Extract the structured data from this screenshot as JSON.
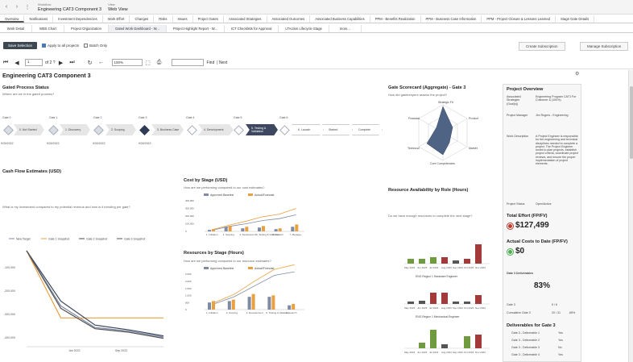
{
  "topbar": {
    "workflow_label": "Workflow",
    "workflow": "Engineering CAT3 Component 3",
    "view_label": "View",
    "view": "Web View"
  },
  "tabs": [
    "Overview",
    "Notifications",
    "Investment Dependencies",
    "Work Effort",
    "Changes",
    "Risks",
    "Issues",
    "Project Gates",
    "Associated Strategies",
    "Associated Outcomes",
    "Associated Business Capabilities",
    "PPM - Benefits Realization",
    "PPM - Business Case Information",
    "PPM - Project Closure & Lessons Learned",
    "Stage Gate Details"
  ],
  "subtabs": [
    "Work Detail",
    "WBS Chart",
    "Project Organization",
    "Gated Work Dashboard - W...",
    "Project Highlight Report - W...",
    "ICT Checklists for Approval",
    "LTAction Lifecycle Stage",
    "more..."
  ],
  "actions": {
    "save_selection": "Save Selection",
    "apply_all": "Apply to all projects",
    "batch_only": "Batch Only",
    "create_subscription": "Create Subscription",
    "manage_subscription": "Manage Subscription"
  },
  "pager": {
    "page": "1",
    "of": "of 2 ?",
    "zoom": "100%",
    "find": "Find",
    "next": "| Next"
  },
  "report": {
    "title": "Engineering CAT3 Component 3",
    "gated": {
      "title": "Gated Process Status",
      "question": "Where are we in the gated process?",
      "gates": [
        {
          "label": "Gate 0",
          "date": "9/30/2022"
        },
        {
          "label": "Gate 1",
          "date": "9/30/2022"
        },
        {
          "label": "Gate 2",
          "date": "9/30/2022"
        },
        {
          "label": "Gate 3",
          "date": "9/30/2022"
        },
        {
          "label": "Gate 4",
          "date": ""
        },
        {
          "label": "Gate 5",
          "date": ""
        },
        {
          "label": "Gate 6",
          "date": ""
        }
      ],
      "stages": [
        "0. Not Started",
        "1. Discovery",
        "2. Scoping",
        "3. Business Case",
        "4. Development",
        "5. Testing & Validation",
        "6. Launch",
        "Started",
        "Complete"
      ]
    },
    "scorecard": {
      "title": "Gate Scorecard (Aggregate) - Gate 3",
      "question": "How did gatekeepers assess the project?",
      "axes": [
        "Strategic Fit",
        "Product",
        "Market",
        "Core Competencies",
        "Technical",
        "Financial"
      ]
    },
    "cashflow": {
      "title": "Cash Flow Estimates (USD)",
      "question": "What is my investment compared to my potential revenue and how is it trending per gate?",
      "legend": [
        "New Target",
        "Gate 1 Snapshot",
        "Gate 2 Snapshot",
        "Gate 3 Snapshot"
      ],
      "yticks": [
        "-100,000",
        "-200,000",
        "-300,000",
        "-400,000"
      ],
      "xticks": [
        "Jan 2023",
        "Sep 2023"
      ]
    },
    "cost": {
      "title": "Cost by Stage (USD)",
      "question": "How are we performing compared to our cost estimates?",
      "legend": [
        "Approved Baseline",
        "Actual/Forecast"
      ],
      "yticks": [
        "400,000",
        "300,000",
        "200,000",
        "100,000",
        "0"
      ],
      "categories": [
        "1. Initiation",
        "2. Scoping",
        "4. Development",
        "5. Testing & Validation",
        "6. Launch",
        "7. Manage..."
      ]
    },
    "resources": {
      "title": "Resources by Stage (Hours)",
      "question": "How are we performing compared to our resource estimates?",
      "legend": [
        "Approved Baseline",
        "Actual/Forecast"
      ],
      "yticks": [
        "2,500",
        "2,000",
        "1,500",
        "1,000",
        "500",
        "0"
      ],
      "categories": [
        "1. Initiation",
        "2. Scoping",
        "4. Development",
        "5. Testing & Validation",
        "6. Launch"
      ]
    },
    "availability": {
      "title": "Resource Availability by Role (Hours)",
      "question": "Do we have enough resources to complete the next stage?",
      "roles": [
        "ENG Region 1 Hardware Engineer",
        "ENG Region 1 Mechanical Engineer"
      ],
      "months": [
        "May 2023",
        "Jun 2023",
        "Jul 2023",
        "Aug 2023",
        "Sep 2023",
        "Oct 2023",
        "Nov 2023"
      ]
    },
    "overview": {
      "title": "Project Overview",
      "rows": [
        {
          "k": "Associated Strategies (Goal(s))",
          "v": "Engineering Program CAT3 For Customer & (100%)"
        },
        {
          "k": "Project Manager",
          "v": "Jim Rogers - Engineering"
        },
        {
          "k": "Work Description",
          "v": "A Project Engineer is responsible for the engineering and technical disciplines needed to complete a project. The Project Engineer works to plan projects, establish project criteria, coordinate project reviews, and ensure the proper implementation of project elements."
        },
        {
          "k": "Project Status",
          "v": "Open/Active"
        }
      ],
      "total_effort_label": "Total Effort (FP/FV)",
      "total_effort": "$127,499",
      "actual_label": "Actual Costs to Date (FP/FV)",
      "actual": "$0",
      "deliv_label": "Gate 3 Deliverables",
      "deliv_pct": "83%",
      "gate_row": {
        "k": "Gate 3",
        "v": "5 / 6"
      },
      "cum_row": {
        "k": "Cumulative Gate 3",
        "v": "20 / 31",
        "p": "65%"
      },
      "deliv_list_title": "Deliverables for Gate 3",
      "deliverables": [
        {
          "name": "Gate 3 - Deliverable 1",
          "s": "Yes"
        },
        {
          "name": "Gate 3 - Deliverable 2",
          "s": "Yes"
        },
        {
          "name": "Gate 3 - Deliverable 3",
          "s": "No"
        },
        {
          "name": "Gate 3 - Deliverable 4",
          "s": "Yes"
        },
        {
          "name": "Gate 3 - Deliverable 5",
          "s": "Yes"
        }
      ]
    }
  },
  "chart_data": [
    {
      "type": "line",
      "title": "Cash Flow Estimates (USD)",
      "x": [
        "2022-09",
        "2023-01",
        "2023-05",
        "2023-09",
        "2023-12"
      ],
      "series": [
        {
          "name": "New Target",
          "values": [
            -20000,
            -250000,
            -340000,
            -355000,
            -380000
          ]
        },
        {
          "name": "Gate 1 Snapshot",
          "values": [
            -20000,
            -300000,
            -300000,
            -300000,
            -300000
          ]
        },
        {
          "name": "Gate 2 Snapshot",
          "values": [
            -20000,
            -230000,
            -330000,
            -350000,
            -375000
          ]
        },
        {
          "name": "Gate 3 Snapshot",
          "values": [
            -20000,
            -260000,
            -345000,
            -360000,
            -385000
          ]
        }
      ],
      "ylim": [
        -420000,
        0
      ]
    },
    {
      "type": "bar",
      "title": "Cost by Stage (USD)",
      "categories": [
        "1. Initiation",
        "2. Scoping",
        "4. Development",
        "5. Testing & Validation",
        "6. Launch",
        "7. Manage..."
      ],
      "series": [
        {
          "name": "Approved Baseline",
          "values": [
            20000,
            60000,
            40000,
            50000,
            30000,
            60000
          ]
        },
        {
          "name": "Actual/Forecast",
          "values": [
            30000,
            70000,
            60000,
            70000,
            40000,
            90000
          ]
        }
      ],
      "ylim": [
        0,
        400000
      ]
    },
    {
      "type": "bar",
      "title": "Resources by Stage (Hours)",
      "categories": [
        "1. Initiation",
        "2. Scoping",
        "4. Development",
        "5. Testing & Validation",
        "6. Launch"
      ],
      "series": [
        {
          "name": "Approved Baseline",
          "values": [
            500,
            600,
            900,
            900,
            300
          ]
        },
        {
          "name": "Actual/Forecast",
          "values": [
            600,
            700,
            1100,
            1000,
            400
          ]
        }
      ],
      "ylim": [
        0,
        2500
      ]
    }
  ],
  "colors": {
    "gray_blue": "#7f8aa3",
    "orange": "#e8a040",
    "navy": "#3d4860",
    "green": "#6f9a3d",
    "red": "#a33a3a",
    "dark_gray": "#555"
  }
}
